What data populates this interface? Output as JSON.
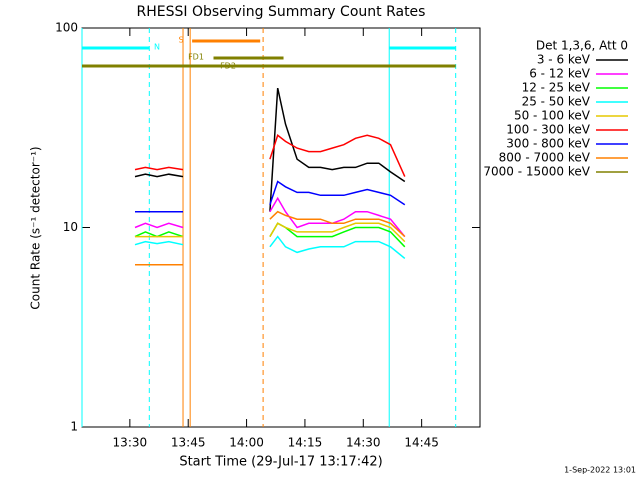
{
  "chart_data": {
    "type": "line",
    "title": "RHESSI Observing Summary Count Rates",
    "x_label": "Start Time (29-Jul-17 13:17:42)",
    "y_label": "Count Rate (s⁻¹ detector⁻¹)",
    "footer": "1-Sep-2022 13:01",
    "legend_title": "Det 1,3,6, Att 0",
    "log_y": true,
    "xlim": [
      "13:17:42",
      "15:00"
    ],
    "ylim": [
      1,
      100
    ],
    "yticks": [
      1,
      10,
      100
    ],
    "xticks": [
      "13:30",
      "13:45",
      "14:00",
      "14:15",
      "14:30",
      "14:45"
    ],
    "x": [
      "13:31:20",
      "13:34",
      "13:37",
      "13:40",
      "13:43:40",
      "13:55",
      "14:06",
      "14:08",
      "14:10",
      "14:13",
      "14:16",
      "14:19",
      "14:22",
      "14:25",
      "14:28",
      "14:31",
      "14:34",
      "14:37",
      "14:40:40"
    ],
    "series": [
      {
        "name": "3 - 6 keV",
        "color": "#000000",
        "values": [
          18,
          18.5,
          18,
          18.5,
          18,
          null,
          12,
          50,
          33,
          22,
          20,
          20,
          19.5,
          20,
          20,
          21,
          21,
          19,
          17
        ]
      },
      {
        "name": "6 - 12 keV",
        "color": "#ff00ff",
        "values": [
          10,
          10.5,
          10,
          10.5,
          10,
          null,
          12,
          14,
          12,
          10,
          10.5,
          10.5,
          10.5,
          11,
          12,
          12,
          11.5,
          11,
          9
        ]
      },
      {
        "name": "12 - 25 keV",
        "color": "#00ff00",
        "values": [
          9,
          9.5,
          9,
          9.5,
          9,
          null,
          9,
          10.5,
          10,
          9,
          9,
          9,
          9,
          9.5,
          10,
          10,
          10,
          9.5,
          8
        ]
      },
      {
        "name": "25 - 50 keV",
        "color": "#00ffff",
        "values": [
          8.2,
          8.5,
          8.3,
          8.5,
          8.2,
          null,
          8,
          9,
          8,
          7.5,
          7.8,
          8,
          8,
          8,
          8.5,
          8.5,
          8.5,
          8,
          7
        ]
      },
      {
        "name": "50 - 100 keV",
        "color": "#e6c800",
        "values": [
          9,
          9,
          9,
          9,
          9,
          null,
          9,
          10.5,
          10,
          9.5,
          9.5,
          9.5,
          9.5,
          10,
          10.5,
          10.5,
          10.5,
          10,
          8.5
        ]
      },
      {
        "name": "100 - 300 keV",
        "color": "#ff0000",
        "values": [
          19.5,
          20,
          19.5,
          20,
          19.5,
          null,
          22,
          29,
          27,
          25,
          24,
          24,
          25,
          26,
          28,
          29,
          28,
          26,
          18
        ]
      },
      {
        "name": "300 - 800 keV",
        "color": "#0000ff",
        "values": [
          12,
          12,
          12,
          12,
          12,
          null,
          13,
          17,
          16,
          15,
          15,
          14.5,
          14.5,
          14.5,
          15,
          15.5,
          15,
          14.5,
          13
        ]
      },
      {
        "name": "800 - 7000 keV",
        "color": "#ff8000",
        "values": [
          6.5,
          6.5,
          6.5,
          6.5,
          6.5,
          null,
          11,
          12,
          11.5,
          11,
          11,
          11,
          10.5,
          10.5,
          11,
          11,
          11,
          10.5,
          9
        ]
      },
      {
        "name": "7000 - 15000 keV",
        "color": "#808000",
        "values": [
          null,
          null,
          null,
          null,
          null,
          null,
          null,
          null,
          null,
          null,
          null,
          null,
          null,
          null,
          null,
          null,
          null,
          null,
          null
        ]
      }
    ],
    "intervals": [
      {
        "label": "N",
        "color": "#00ffff",
        "spans": [
          [
            "13:17:42",
            "13:35"
          ],
          [
            "14:36:40",
            "14:53:45"
          ]
        ]
      },
      {
        "label": "S",
        "color": "#ff8000",
        "spans": [
          [
            "13:46",
            "14:03:30"
          ]
        ]
      },
      {
        "label": "FD1",
        "color": "#808000",
        "spans": [
          [
            "13:51:30",
            "14:09:30"
          ]
        ]
      },
      {
        "label": "FD2",
        "color": "#808000",
        "spans": [
          [
            "13:17:42",
            "14:53:45"
          ]
        ]
      }
    ],
    "markers": [
      {
        "time": "13:17:42",
        "color": "#00ffff",
        "dashed": false
      },
      {
        "time": "13:35",
        "color": "#00ffff",
        "dashed": true
      },
      {
        "time": "13:43:40",
        "color": "#ff8000",
        "dashed": false
      },
      {
        "time": "13:45:30",
        "color": "#ff8000",
        "dashed": false
      },
      {
        "time": "14:04:15",
        "color": "#ff8000",
        "dashed": true
      },
      {
        "time": "14:36:40",
        "color": "#00ffff",
        "dashed": false
      },
      {
        "time": "14:53:45",
        "color": "#00ffff",
        "dashed": true
      }
    ]
  }
}
